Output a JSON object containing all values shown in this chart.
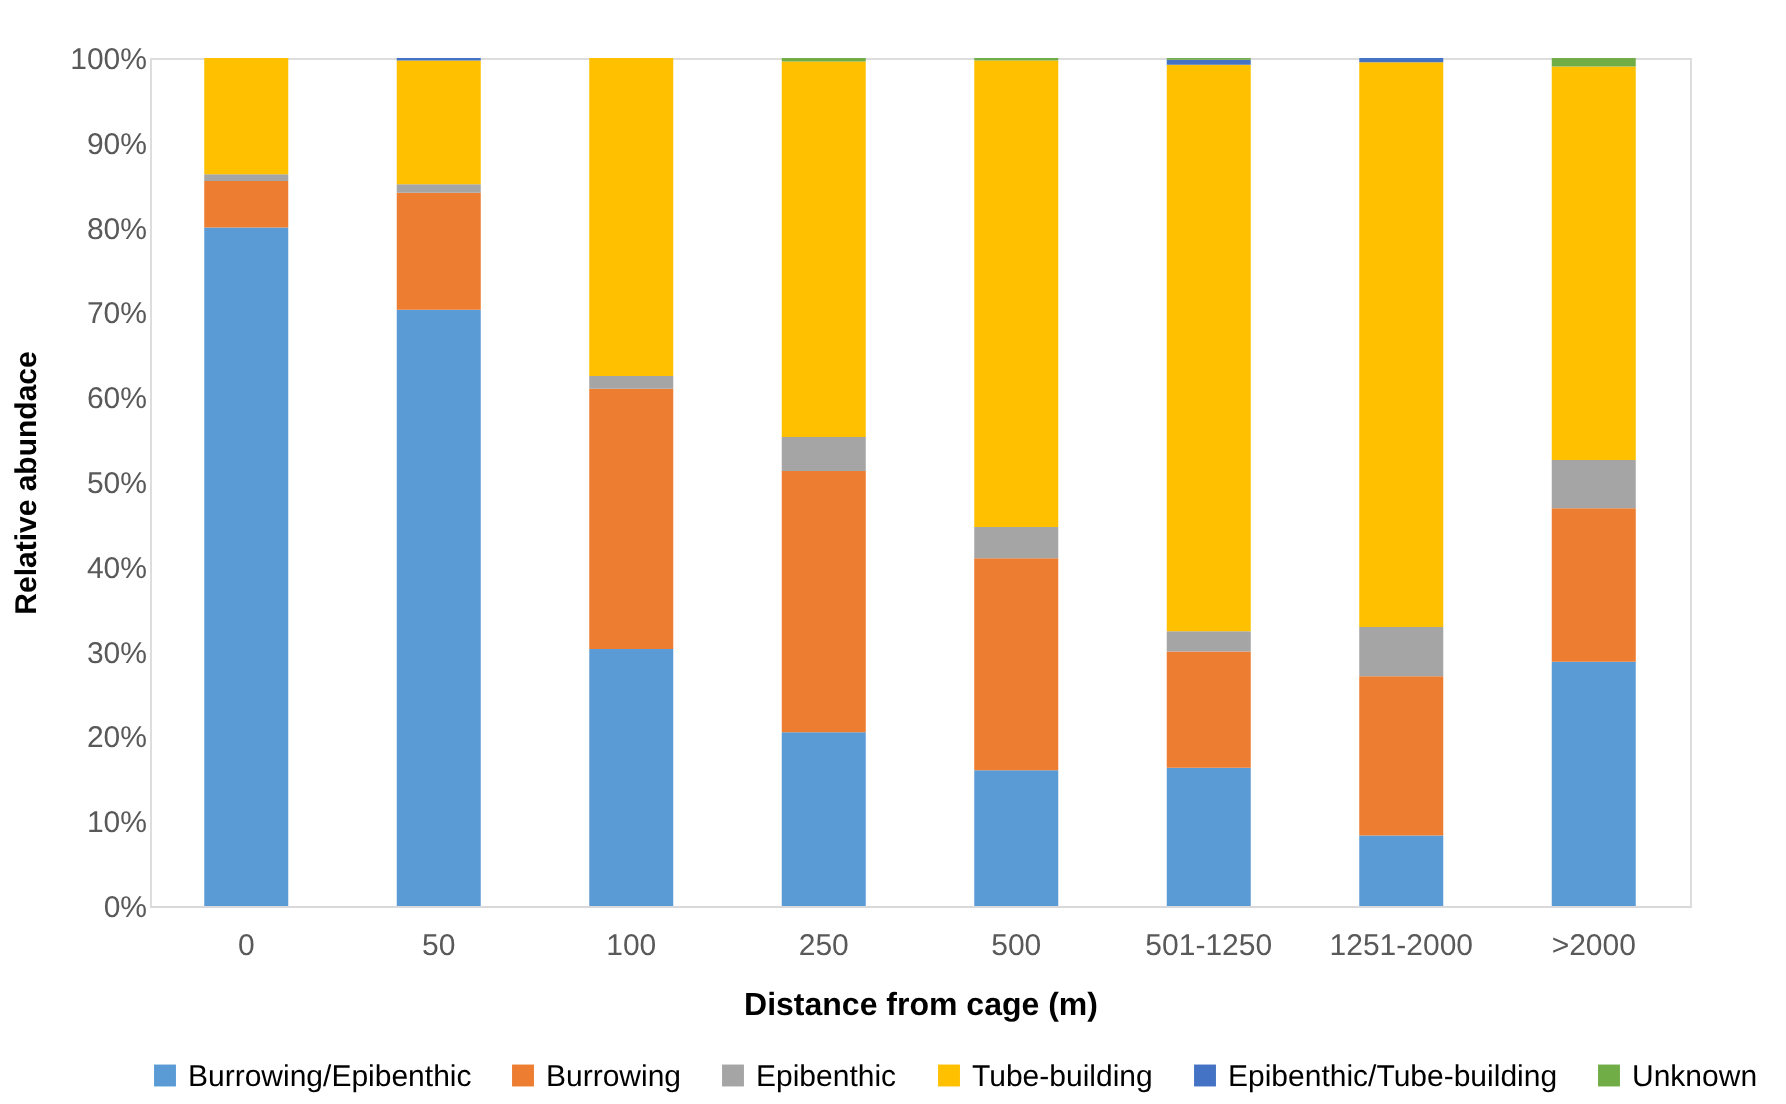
{
  "chart_data": {
    "type": "bar",
    "stacked": true,
    "xlabel": "Distance from cage (m)",
    "ylabel": "Relative abundace",
    "categories": [
      "0",
      "50",
      "100",
      "250",
      "500",
      "501-1250",
      "1251-2000",
      ">2000"
    ],
    "series": [
      {
        "name": "Burrowing/Epibenthic",
        "color": "#5b9bd5",
        "values": [
          80.0,
          70.3,
          30.3,
          20.5,
          16.0,
          16.3,
          8.3,
          28.8
        ]
      },
      {
        "name": "Burrowing",
        "color": "#ed7d31",
        "values": [
          5.5,
          13.8,
          30.7,
          30.8,
          25.0,
          13.7,
          18.8,
          18.1
        ]
      },
      {
        "name": "Epibenthic",
        "color": "#a5a5a5",
        "values": [
          0.8,
          1.0,
          1.5,
          4.0,
          3.7,
          2.4,
          5.8,
          5.7
        ]
      },
      {
        "name": "Tube-building",
        "color": "#ffc000",
        "values": [
          13.7,
          14.6,
          37.5,
          44.3,
          55.0,
          66.8,
          66.6,
          46.4
        ]
      },
      {
        "name": "Epibenthic/Tube-building",
        "color": "#4472c4",
        "values": [
          null,
          0.3,
          null,
          null,
          null,
          0.6,
          0.5,
          null
        ]
      },
      {
        "name": "Unknown",
        "color": "#70ad47",
        "values": [
          null,
          null,
          null,
          0.4,
          0.3,
          0.2,
          null,
          1.0
        ]
      }
    ],
    "ylim": [
      0,
      100
    ],
    "yticks": [
      {
        "value": 0,
        "label": "0%"
      },
      {
        "value": 10,
        "label": "10%"
      },
      {
        "value": 20,
        "label": "20%"
      },
      {
        "value": 30,
        "label": "30%"
      },
      {
        "value": 40,
        "label": "40%"
      },
      {
        "value": 50,
        "label": "50%"
      },
      {
        "value": 60,
        "label": "60%"
      },
      {
        "value": 70,
        "label": "70%"
      },
      {
        "value": 80,
        "label": "80%"
      },
      {
        "value": 90,
        "label": "90%"
      },
      {
        "value": 100,
        "label": "100%"
      }
    ],
    "grid": false,
    "legend": "bottom"
  }
}
